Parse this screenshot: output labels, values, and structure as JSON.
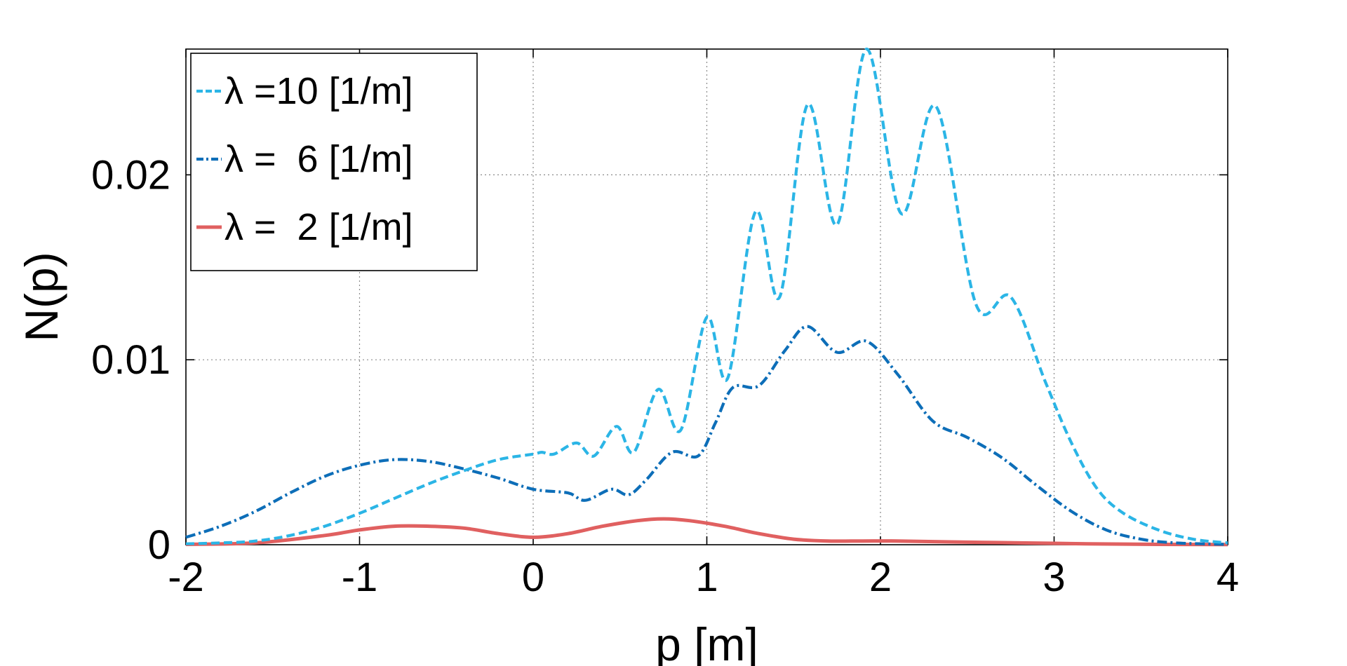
{
  "chart_data": {
    "type": "line",
    "title": "",
    "xlabel": "p [m]",
    "ylabel": "N(p)",
    "xlim": [
      -2,
      4
    ],
    "ylim": [
      0,
      0.0268
    ],
    "xticks": [
      -2,
      -1,
      0,
      1,
      2,
      3,
      4
    ],
    "xtick_labels": [
      "-2",
      "-1",
      "0",
      "1",
      "2",
      "3",
      "4"
    ],
    "yticks": [
      0,
      0.01,
      0.02
    ],
    "ytick_labels": [
      "0",
      "0.01",
      "0.02"
    ],
    "grid": true,
    "legend_position": "top-left",
    "series": [
      {
        "name": "λ =10 [1/m]",
        "color": "#2bb5e6",
        "style": "dashed",
        "x": [
          -2.0,
          -1.8,
          -1.6,
          -1.4,
          -1.2,
          -1.0,
          -0.8,
          -0.6,
          -0.4,
          -0.2,
          0.0,
          0.05,
          0.12,
          0.25,
          0.35,
          0.48,
          0.58,
          0.72,
          0.85,
          1.0,
          1.12,
          1.28,
          1.42,
          1.58,
          1.75,
          1.92,
          2.12,
          2.32,
          2.55,
          2.75,
          2.95,
          3.1,
          3.25,
          3.4,
          3.6,
          3.8,
          4.0
        ],
        "y": [
          5e-05,
          0.0001,
          0.0002,
          0.0005,
          0.001,
          0.0017,
          0.0025,
          0.0033,
          0.004,
          0.0046,
          0.0049,
          0.005,
          0.0049,
          0.0055,
          0.0048,
          0.0064,
          0.005,
          0.0084,
          0.0062,
          0.0123,
          0.009,
          0.018,
          0.0134,
          0.0238,
          0.0173,
          0.0268,
          0.0179,
          0.0237,
          0.013,
          0.0134,
          0.0088,
          0.0055,
          0.003,
          0.0017,
          0.0008,
          0.0003,
          0.0001
        ]
      },
      {
        "name": "λ =  6 [1/m]",
        "color": "#0d6eb8",
        "style": "dashdot",
        "x": [
          -2.0,
          -1.8,
          -1.6,
          -1.4,
          -1.2,
          -1.0,
          -0.8,
          -0.6,
          -0.4,
          -0.2,
          0.0,
          0.2,
          0.3,
          0.45,
          0.55,
          0.65,
          0.8,
          0.95,
          1.05,
          1.15,
          1.3,
          1.45,
          1.58,
          1.75,
          1.92,
          2.1,
          2.3,
          2.5,
          2.7,
          2.9,
          3.1,
          3.3,
          3.5,
          3.7,
          4.0
        ],
        "y": [
          0.0004,
          0.001,
          0.0018,
          0.0028,
          0.0037,
          0.0043,
          0.0046,
          0.0045,
          0.0041,
          0.0036,
          0.003,
          0.0028,
          0.0024,
          0.003,
          0.0027,
          0.0035,
          0.005,
          0.0048,
          0.0066,
          0.0085,
          0.0086,
          0.0105,
          0.0118,
          0.0104,
          0.011,
          0.0092,
          0.0067,
          0.0058,
          0.0047,
          0.0032,
          0.0018,
          0.0008,
          0.0003,
          0.0001,
          2e-05
        ]
      },
      {
        "name": "λ =  2 [1/m]",
        "color": "#e06060",
        "style": "solid",
        "x": [
          -2.0,
          -1.6,
          -1.2,
          -1.0,
          -0.8,
          -0.6,
          -0.4,
          -0.2,
          0.0,
          0.2,
          0.4,
          0.6,
          0.75,
          0.9,
          1.1,
          1.3,
          1.5,
          1.7,
          1.9,
          2.1,
          2.4,
          2.8,
          3.2,
          3.6,
          4.0
        ],
        "y": [
          2e-05,
          0.0001,
          0.0005,
          0.0008,
          0.001,
          0.001,
          0.0009,
          0.0006,
          0.0004,
          0.0006,
          0.001,
          0.0013,
          0.0014,
          0.0013,
          0.001,
          0.0006,
          0.0003,
          0.0002,
          0.0002,
          0.0002,
          0.00015,
          0.0001,
          5e-05,
          2e-05,
          1e-05
        ]
      }
    ]
  }
}
